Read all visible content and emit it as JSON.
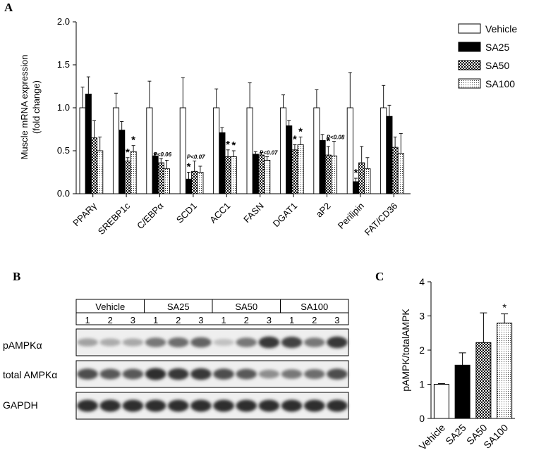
{
  "panel_labels": {
    "a": "A",
    "b": "B",
    "c": "C"
  },
  "chart_data": [
    {
      "type": "bar",
      "panel": "A",
      "title": "",
      "ylabel_line1": "Muscle mRNA expression",
      "ylabel_line2": "(fold change)",
      "xlabel": "",
      "ylim": [
        0,
        2.0
      ],
      "yticks": [
        "0.0",
        "0.5",
        "1.0",
        "1.5",
        "2.0"
      ],
      "categories": [
        "PPARγ",
        "SREBP1c",
        "C/EBPα",
        "SCD1",
        "ACC1",
        "FASN",
        "DGAT1",
        "aP2",
        "Perilipin",
        "FAT/CD36"
      ],
      "legend": [
        "Vehicle",
        "SA25",
        "SA50",
        "SA100"
      ],
      "series": [
        {
          "name": "Vehicle",
          "values": [
            1.0,
            1.0,
            1.0,
            1.0,
            1.0,
            1.0,
            1.0,
            1.0,
            1.0,
            1.0
          ],
          "errors": [
            0.24,
            0.17,
            0.31,
            0.35,
            0.22,
            0.29,
            0.15,
            0.21,
            0.41,
            0.26
          ]
        },
        {
          "name": "SA25",
          "values": [
            1.16,
            0.74,
            0.44,
            0.17,
            0.71,
            0.46,
            0.79,
            0.62,
            0.14,
            0.9
          ],
          "errors": [
            0.2,
            0.1,
            0.03,
            0.08,
            0.06,
            0.03,
            0.06,
            0.07,
            0.04,
            0.13
          ]
        },
        {
          "name": "SA50",
          "values": [
            0.65,
            0.38,
            0.36,
            0.26,
            0.43,
            0.45,
            0.51,
            0.45,
            0.36,
            0.54
          ],
          "errors": [
            0.2,
            0.04,
            0.05,
            0.12,
            0.08,
            0.03,
            0.06,
            0.1,
            0.19,
            0.12
          ]
        },
        {
          "name": "SA100",
          "values": [
            0.5,
            0.49,
            0.29,
            0.25,
            0.43,
            0.39,
            0.57,
            0.44,
            0.29,
            0.47
          ],
          "errors": [
            0.16,
            0.07,
            0.1,
            0.07,
            0.07,
            0.04,
            0.09,
            0.17,
            0.13,
            0.23
          ]
        }
      ],
      "annotations": [
        {
          "category": "SREBP1c",
          "series": "SA50",
          "text": "*"
        },
        {
          "category": "SREBP1c",
          "series": "SA100",
          "text": "*"
        },
        {
          "category": "C/EBPα",
          "series": "SA50",
          "text": "P<0.06"
        },
        {
          "category": "SCD1",
          "series": "SA25",
          "text": "*"
        },
        {
          "category": "SCD1",
          "series": "SA50",
          "text": "P<0.07"
        },
        {
          "category": "ACC1",
          "series": "SA50",
          "text": "*"
        },
        {
          "category": "ACC1",
          "series": "SA100",
          "text": "*"
        },
        {
          "category": "FASN",
          "series": "SA100",
          "text": "P<0.07"
        },
        {
          "category": "DGAT1",
          "series": "SA50",
          "text": "*"
        },
        {
          "category": "DGAT1",
          "series": "SA100",
          "text": "*"
        },
        {
          "category": "aP2",
          "series": "SA50",
          "text": "*"
        },
        {
          "category": "aP2",
          "series": "SA100",
          "text": "P<0.08"
        },
        {
          "category": "Perilipin",
          "series": "SA25",
          "text": "*"
        }
      ]
    },
    {
      "type": "bar",
      "panel": "C",
      "title": "",
      "ylabel": "pAMPK/totalAMPK",
      "xlabel": "",
      "ylim": [
        0,
        4
      ],
      "yticks": [
        "0",
        "1",
        "2",
        "3",
        "4"
      ],
      "categories": [
        "Vehicle",
        "SA25",
        "SA50",
        "SA100"
      ],
      "values": [
        1.0,
        1.56,
        2.22,
        2.79
      ],
      "errors": [
        0.02,
        0.36,
        0.87,
        0.27
      ],
      "annotations": [
        {
          "category": "SA100",
          "text": "*"
        }
      ]
    }
  ],
  "blot": {
    "groups": [
      "Vehicle",
      "SA25",
      "SA50",
      "SA100"
    ],
    "lane_numbers": [
      "1",
      "2",
      "3",
      "1",
      "2",
      "3",
      "1",
      "2",
      "3",
      "1",
      "2",
      "3"
    ],
    "rows": [
      {
        "label": "pAMPKα",
        "intensity": [
          0.35,
          0.3,
          0.32,
          0.55,
          0.6,
          0.65,
          0.2,
          0.55,
          0.85,
          0.8,
          0.55,
          0.85
        ]
      },
      {
        "label": "total AMPKα",
        "intensity": [
          0.75,
          0.7,
          0.7,
          0.9,
          0.85,
          0.85,
          0.75,
          0.7,
          0.45,
          0.55,
          0.6,
          0.75
        ]
      },
      {
        "label": "GAPDH",
        "intensity": [
          0.9,
          0.9,
          0.9,
          0.9,
          0.9,
          0.9,
          0.9,
          0.9,
          0.9,
          0.9,
          0.9,
          0.9
        ]
      }
    ]
  }
}
